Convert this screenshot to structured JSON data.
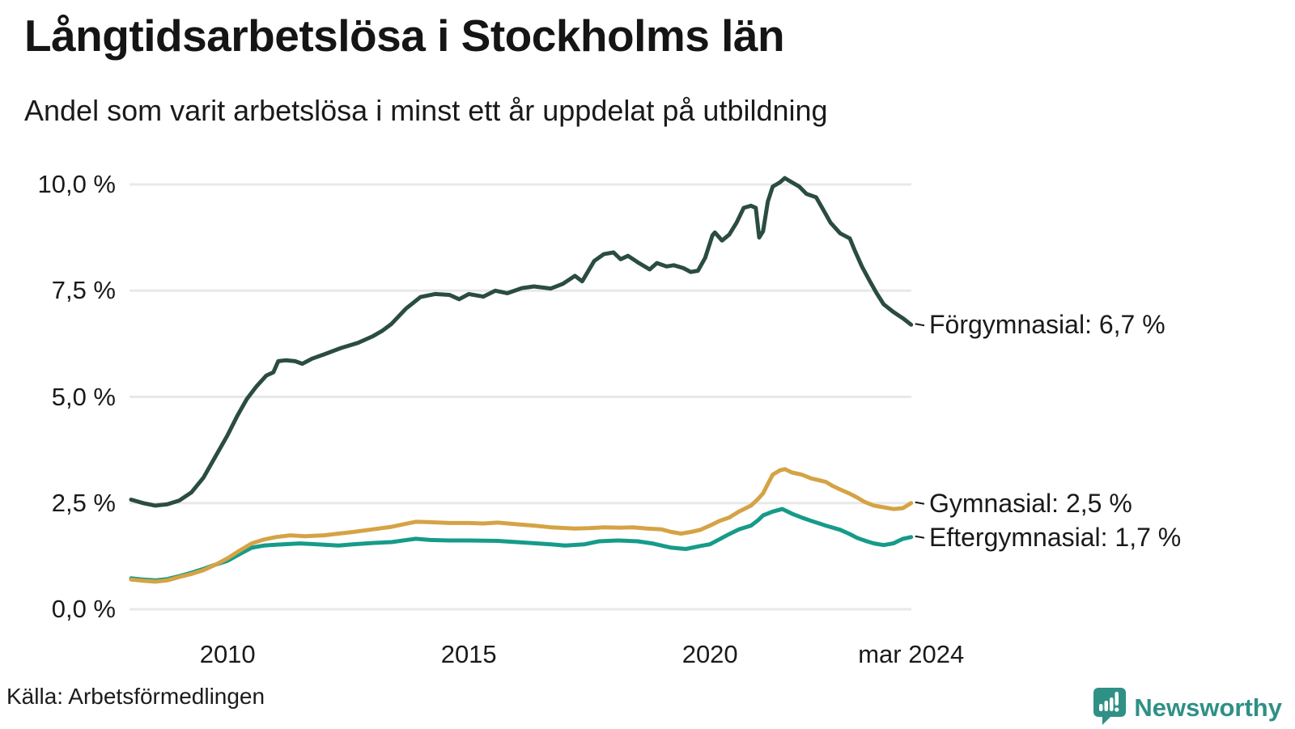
{
  "header": {
    "title": "Långtidsarbetslösa i Stockholms län",
    "subtitle": "Andel som varit arbetslösa i minst ett år uppdelat på utbildning"
  },
  "footer": {
    "source": "Källa: Arbetsförmedlingen",
    "brand": "Newsworthy"
  },
  "colors": {
    "forgymnasial": "#2b4c41",
    "gymnasial": "#d5a345",
    "eftergymnasial": "#169b89",
    "grid": "#e8e8ea",
    "text": "#1a1a1a",
    "brand_teal": "#2f9086"
  },
  "chart_data": {
    "type": "line",
    "title": "Långtidsarbetslösa i Stockholms län",
    "subtitle": "Andel som varit arbetslösa i minst ett år uppdelat på utbildning",
    "unit": "%",
    "x_domain": [
      2008.0,
      2024.25
    ],
    "y_domain": [
      0,
      10
    ],
    "grid": "horizontal-only",
    "legend_position": "line-end-labels-right",
    "y_ticks": [
      {
        "value": 10,
        "label": "10,0 %"
      },
      {
        "value": 7.5,
        "label": "7,5 %"
      },
      {
        "value": 5,
        "label": "5,0 %"
      },
      {
        "value": 2.5,
        "label": "2,5 %"
      },
      {
        "value": 0,
        "label": "0,0 %"
      }
    ],
    "x_ticks": [
      {
        "value": 2010,
        "label": "2010"
      },
      {
        "value": 2015,
        "label": "2015"
      },
      {
        "value": 2020,
        "label": "2020"
      },
      {
        "value": 2024.17,
        "label": "mar 2024"
      }
    ],
    "series": [
      {
        "name": "Förgymnasial",
        "end_label": "Förgymnasial: 6,7 %",
        "last_value": 6.7,
        "color": "#2b4c41",
        "points": [
          [
            2008.0,
            2.58
          ],
          [
            2008.25,
            2.5
          ],
          [
            2008.5,
            2.44
          ],
          [
            2008.75,
            2.47
          ],
          [
            2009.0,
            2.56
          ],
          [
            2009.25,
            2.75
          ],
          [
            2009.5,
            3.1
          ],
          [
            2009.75,
            3.6
          ],
          [
            2010.0,
            4.1
          ],
          [
            2010.2,
            4.55
          ],
          [
            2010.4,
            4.95
          ],
          [
            2010.6,
            5.25
          ],
          [
            2010.8,
            5.5
          ],
          [
            2010.95,
            5.58
          ],
          [
            2011.05,
            5.84
          ],
          [
            2011.2,
            5.86
          ],
          [
            2011.4,
            5.84
          ],
          [
            2011.55,
            5.78
          ],
          [
            2011.75,
            5.9
          ],
          [
            2012.0,
            6.0
          ],
          [
            2012.35,
            6.15
          ],
          [
            2012.7,
            6.27
          ],
          [
            2013.0,
            6.42
          ],
          [
            2013.2,
            6.55
          ],
          [
            2013.4,
            6.72
          ],
          [
            2013.7,
            7.08
          ],
          [
            2014.0,
            7.35
          ],
          [
            2014.3,
            7.42
          ],
          [
            2014.6,
            7.4
          ],
          [
            2014.8,
            7.3
          ],
          [
            2015.0,
            7.42
          ],
          [
            2015.3,
            7.36
          ],
          [
            2015.55,
            7.5
          ],
          [
            2015.8,
            7.44
          ],
          [
            2016.1,
            7.56
          ],
          [
            2016.35,
            7.6
          ],
          [
            2016.7,
            7.55
          ],
          [
            2016.95,
            7.66
          ],
          [
            2017.2,
            7.85
          ],
          [
            2017.35,
            7.72
          ],
          [
            2017.6,
            8.2
          ],
          [
            2017.8,
            8.36
          ],
          [
            2018.0,
            8.4
          ],
          [
            2018.15,
            8.24
          ],
          [
            2018.3,
            8.32
          ],
          [
            2018.5,
            8.17
          ],
          [
            2018.75,
            8.0
          ],
          [
            2018.9,
            8.15
          ],
          [
            2019.1,
            8.07
          ],
          [
            2019.25,
            8.1
          ],
          [
            2019.45,
            8.03
          ],
          [
            2019.6,
            7.94
          ],
          [
            2019.75,
            7.97
          ],
          [
            2019.9,
            8.27
          ],
          [
            2020.05,
            8.8
          ],
          [
            2020.1,
            8.87
          ],
          [
            2020.25,
            8.68
          ],
          [
            2020.4,
            8.82
          ],
          [
            2020.55,
            9.1
          ],
          [
            2020.7,
            9.45
          ],
          [
            2020.85,
            9.5
          ],
          [
            2020.95,
            9.45
          ],
          [
            2021.02,
            8.75
          ],
          [
            2021.1,
            8.9
          ],
          [
            2021.2,
            9.6
          ],
          [
            2021.3,
            9.95
          ],
          [
            2021.45,
            10.05
          ],
          [
            2021.55,
            10.15
          ],
          [
            2021.7,
            10.05
          ],
          [
            2021.85,
            9.95
          ],
          [
            2022.0,
            9.78
          ],
          [
            2022.2,
            9.7
          ],
          [
            2022.35,
            9.4
          ],
          [
            2022.5,
            9.1
          ],
          [
            2022.7,
            8.85
          ],
          [
            2022.9,
            8.73
          ],
          [
            2023.0,
            8.45
          ],
          [
            2023.15,
            8.07
          ],
          [
            2023.3,
            7.75
          ],
          [
            2023.45,
            7.45
          ],
          [
            2023.6,
            7.18
          ],
          [
            2023.8,
            7.0
          ],
          [
            2024.0,
            6.85
          ],
          [
            2024.17,
            6.7
          ]
        ]
      },
      {
        "name": "Gymnasial",
        "end_label": "Gymnasial: 2,5 %",
        "last_value": 2.5,
        "color": "#d5a345",
        "points": [
          [
            2008.0,
            0.7
          ],
          [
            2008.25,
            0.67
          ],
          [
            2008.5,
            0.65
          ],
          [
            2008.75,
            0.68
          ],
          [
            2009.0,
            0.76
          ],
          [
            2009.25,
            0.83
          ],
          [
            2009.5,
            0.92
          ],
          [
            2009.75,
            1.05
          ],
          [
            2010.0,
            1.2
          ],
          [
            2010.25,
            1.38
          ],
          [
            2010.5,
            1.55
          ],
          [
            2010.75,
            1.64
          ],
          [
            2011.0,
            1.7
          ],
          [
            2011.3,
            1.74
          ],
          [
            2011.6,
            1.72
          ],
          [
            2012.0,
            1.74
          ],
          [
            2012.3,
            1.78
          ],
          [
            2012.6,
            1.82
          ],
          [
            2013.0,
            1.88
          ],
          [
            2013.4,
            1.94
          ],
          [
            2013.9,
            2.06
          ],
          [
            2014.2,
            2.05
          ],
          [
            2014.6,
            2.03
          ],
          [
            2015.0,
            2.03
          ],
          [
            2015.3,
            2.02
          ],
          [
            2015.6,
            2.04
          ],
          [
            2016.0,
            2.0
          ],
          [
            2016.35,
            1.97
          ],
          [
            2016.7,
            1.93
          ],
          [
            2017.2,
            1.9
          ],
          [
            2017.5,
            1.91
          ],
          [
            2017.8,
            1.93
          ],
          [
            2018.1,
            1.92
          ],
          [
            2018.4,
            1.93
          ],
          [
            2018.7,
            1.9
          ],
          [
            2019.0,
            1.88
          ],
          [
            2019.2,
            1.82
          ],
          [
            2019.4,
            1.78
          ],
          [
            2019.6,
            1.82
          ],
          [
            2019.8,
            1.87
          ],
          [
            2020.0,
            1.97
          ],
          [
            2020.2,
            2.08
          ],
          [
            2020.4,
            2.16
          ],
          [
            2020.6,
            2.3
          ],
          [
            2020.85,
            2.44
          ],
          [
            2021.0,
            2.6
          ],
          [
            2021.1,
            2.73
          ],
          [
            2021.2,
            2.95
          ],
          [
            2021.3,
            3.17
          ],
          [
            2021.45,
            3.27
          ],
          [
            2021.55,
            3.3
          ],
          [
            2021.7,
            3.22
          ],
          [
            2021.9,
            3.17
          ],
          [
            2022.1,
            3.08
          ],
          [
            2022.4,
            3.0
          ],
          [
            2022.55,
            2.9
          ],
          [
            2022.7,
            2.82
          ],
          [
            2022.9,
            2.72
          ],
          [
            2023.05,
            2.63
          ],
          [
            2023.2,
            2.53
          ],
          [
            2023.4,
            2.44
          ],
          [
            2023.6,
            2.4
          ],
          [
            2023.8,
            2.36
          ],
          [
            2024.0,
            2.38
          ],
          [
            2024.17,
            2.5
          ]
        ]
      },
      {
        "name": "Eftergymnasial",
        "end_label": "Eftergymnasial: 1,7 %",
        "last_value": 1.7,
        "color": "#169b89",
        "points": [
          [
            2008.0,
            0.73
          ],
          [
            2008.25,
            0.7
          ],
          [
            2008.5,
            0.68
          ],
          [
            2008.75,
            0.71
          ],
          [
            2009.0,
            0.78
          ],
          [
            2009.25,
            0.86
          ],
          [
            2009.5,
            0.95
          ],
          [
            2009.75,
            1.05
          ],
          [
            2010.0,
            1.14
          ],
          [
            2010.25,
            1.3
          ],
          [
            2010.5,
            1.45
          ],
          [
            2010.75,
            1.5
          ],
          [
            2011.0,
            1.52
          ],
          [
            2011.5,
            1.55
          ],
          [
            2012.0,
            1.52
          ],
          [
            2012.3,
            1.5
          ],
          [
            2012.6,
            1.53
          ],
          [
            2013.0,
            1.56
          ],
          [
            2013.4,
            1.58
          ],
          [
            2013.9,
            1.66
          ],
          [
            2014.2,
            1.63
          ],
          [
            2014.6,
            1.62
          ],
          [
            2015.0,
            1.62
          ],
          [
            2015.6,
            1.61
          ],
          [
            2016.0,
            1.58
          ],
          [
            2016.7,
            1.53
          ],
          [
            2017.0,
            1.5
          ],
          [
            2017.4,
            1.53
          ],
          [
            2017.7,
            1.6
          ],
          [
            2018.1,
            1.62
          ],
          [
            2018.5,
            1.6
          ],
          [
            2018.8,
            1.55
          ],
          [
            2019.0,
            1.5
          ],
          [
            2019.2,
            1.45
          ],
          [
            2019.5,
            1.42
          ],
          [
            2019.8,
            1.49
          ],
          [
            2020.0,
            1.53
          ],
          [
            2020.2,
            1.65
          ],
          [
            2020.4,
            1.77
          ],
          [
            2020.6,
            1.88
          ],
          [
            2020.85,
            1.97
          ],
          [
            2021.0,
            2.1
          ],
          [
            2021.1,
            2.21
          ],
          [
            2021.3,
            2.3
          ],
          [
            2021.5,
            2.36
          ],
          [
            2021.7,
            2.25
          ],
          [
            2021.9,
            2.16
          ],
          [
            2022.1,
            2.08
          ],
          [
            2022.4,
            1.97
          ],
          [
            2022.7,
            1.87
          ],
          [
            2022.9,
            1.77
          ],
          [
            2023.05,
            1.68
          ],
          [
            2023.25,
            1.6
          ],
          [
            2023.4,
            1.55
          ],
          [
            2023.6,
            1.51
          ],
          [
            2023.8,
            1.55
          ],
          [
            2024.0,
            1.66
          ],
          [
            2024.17,
            1.7
          ]
        ]
      }
    ]
  }
}
